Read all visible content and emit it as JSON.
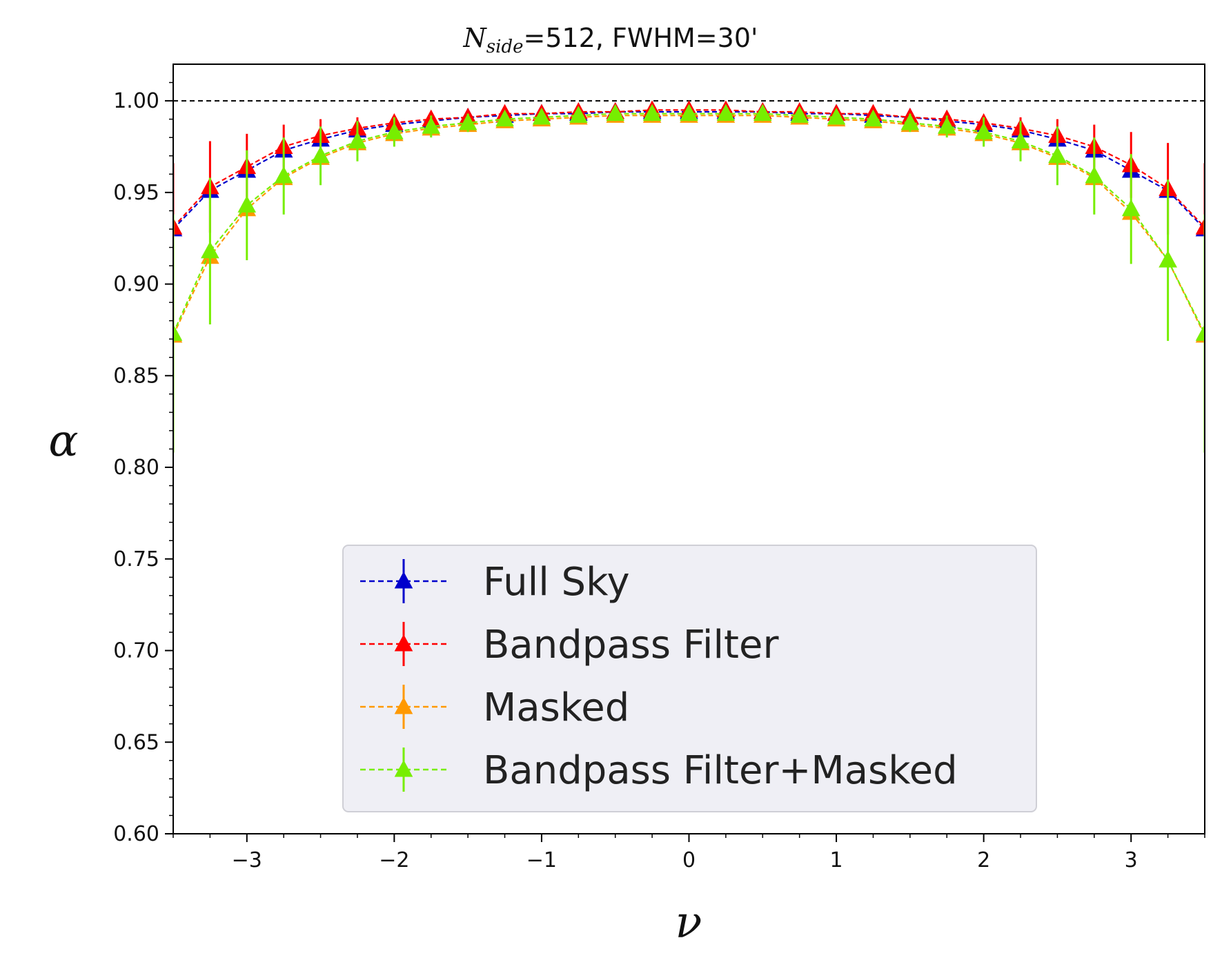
{
  "chart_data": {
    "type": "line",
    "title_main": "N",
    "title_sub": "side",
    "title_rest": "=512, FWHM=30'",
    "xlabel": "ν",
    "ylabel": "α",
    "xlim": [
      -3.5,
      3.5
    ],
    "ylim": [
      0.6,
      1.02
    ],
    "xticks": [
      -3,
      -2,
      -1,
      0,
      1,
      2,
      3
    ],
    "xtick_labels": [
      "−3",
      "−2",
      "−1",
      "0",
      "1",
      "2",
      "3"
    ],
    "yticks": [
      0.6,
      0.65,
      0.7,
      0.75,
      0.8,
      0.85,
      0.9,
      0.95,
      1.0
    ],
    "ytick_labels": [
      "0.60",
      "0.65",
      "0.70",
      "0.75",
      "0.80",
      "0.85",
      "0.90",
      "0.95",
      "1.00"
    ],
    "reference_line": 1.0,
    "grid": false,
    "legend_position": "lower-center",
    "x": [
      -3.5,
      -3.25,
      -3.0,
      -2.75,
      -2.5,
      -2.25,
      -2.0,
      -1.75,
      -1.5,
      -1.25,
      -1.0,
      -0.75,
      -0.5,
      -0.25,
      0.0,
      0.25,
      0.5,
      0.75,
      1.0,
      1.25,
      1.5,
      1.75,
      2.0,
      2.25,
      2.5,
      2.75,
      3.0,
      3.25,
      3.5
    ],
    "series": [
      {
        "name": "Full Sky",
        "color": "#0000cc",
        "values": [
          0.93,
          0.951,
          0.962,
          0.973,
          0.979,
          0.984,
          0.987,
          0.989,
          0.991,
          0.992,
          0.993,
          0.993,
          0.994,
          0.994,
          0.994,
          0.994,
          0.994,
          0.993,
          0.993,
          0.992,
          0.991,
          0.989,
          0.987,
          0.984,
          0.979,
          0.973,
          0.962,
          0.951,
          0.93
        ],
        "errors": [
          0,
          0,
          0,
          0,
          0,
          0,
          0,
          0,
          0,
          0,
          0,
          0,
          0,
          0,
          0,
          0,
          0,
          0,
          0,
          0,
          0,
          0,
          0,
          0,
          0,
          0,
          0,
          0,
          0
        ]
      },
      {
        "name": "Bandpass Filter",
        "color": "#ff0000",
        "values": [
          0.931,
          0.953,
          0.964,
          0.975,
          0.981,
          0.985,
          0.988,
          0.99,
          0.991,
          0.993,
          0.993,
          0.994,
          0.994,
          0.995,
          0.995,
          0.995,
          0.994,
          0.994,
          0.993,
          0.993,
          0.991,
          0.99,
          0.988,
          0.985,
          0.981,
          0.975,
          0.965,
          0.952,
          0.931
        ],
        "errors": [
          0.035,
          0.025,
          0.018,
          0.012,
          0.009,
          0.006,
          0.004,
          0.003,
          0.003,
          0.002,
          0.002,
          0.002,
          0.002,
          0.002,
          0.002,
          0.002,
          0.002,
          0.002,
          0.002,
          0.002,
          0.003,
          0.003,
          0.004,
          0.006,
          0.009,
          0.012,
          0.018,
          0.025,
          0.035
        ]
      },
      {
        "name": "Masked",
        "color": "#ff9900",
        "values": [
          0.872,
          0.915,
          0.941,
          0.958,
          0.969,
          0.977,
          0.982,
          0.985,
          0.987,
          0.989,
          0.99,
          0.991,
          0.992,
          0.992,
          0.992,
          0.992,
          0.992,
          0.991,
          0.99,
          0.989,
          0.987,
          0.985,
          0.982,
          0.977,
          0.969,
          0.958,
          0.939,
          0.913,
          0.872
        ],
        "errors": [
          0,
          0,
          0,
          0,
          0,
          0,
          0,
          0,
          0,
          0,
          0,
          0,
          0,
          0,
          0,
          0,
          0,
          0,
          0,
          0,
          0,
          0,
          0,
          0,
          0,
          0,
          0,
          0,
          0
        ]
      },
      {
        "name": "Bandpass Filter+Masked",
        "color": "#77ee00",
        "values": [
          0.873,
          0.918,
          0.943,
          0.959,
          0.97,
          0.978,
          0.983,
          0.986,
          0.988,
          0.99,
          0.991,
          0.992,
          0.993,
          0.993,
          0.993,
          0.993,
          0.993,
          0.992,
          0.991,
          0.99,
          0.988,
          0.986,
          0.983,
          0.978,
          0.97,
          0.959,
          0.941,
          0.913,
          0.873
        ],
        "errors": [
          0.065,
          0.04,
          0.03,
          0.021,
          0.016,
          0.011,
          0.008,
          0.006,
          0.005,
          0.004,
          0.004,
          0.004,
          0.004,
          0.004,
          0.004,
          0.004,
          0.004,
          0.004,
          0.004,
          0.004,
          0.005,
          0.006,
          0.008,
          0.011,
          0.016,
          0.021,
          0.03,
          0.044,
          0.065
        ]
      }
    ]
  }
}
